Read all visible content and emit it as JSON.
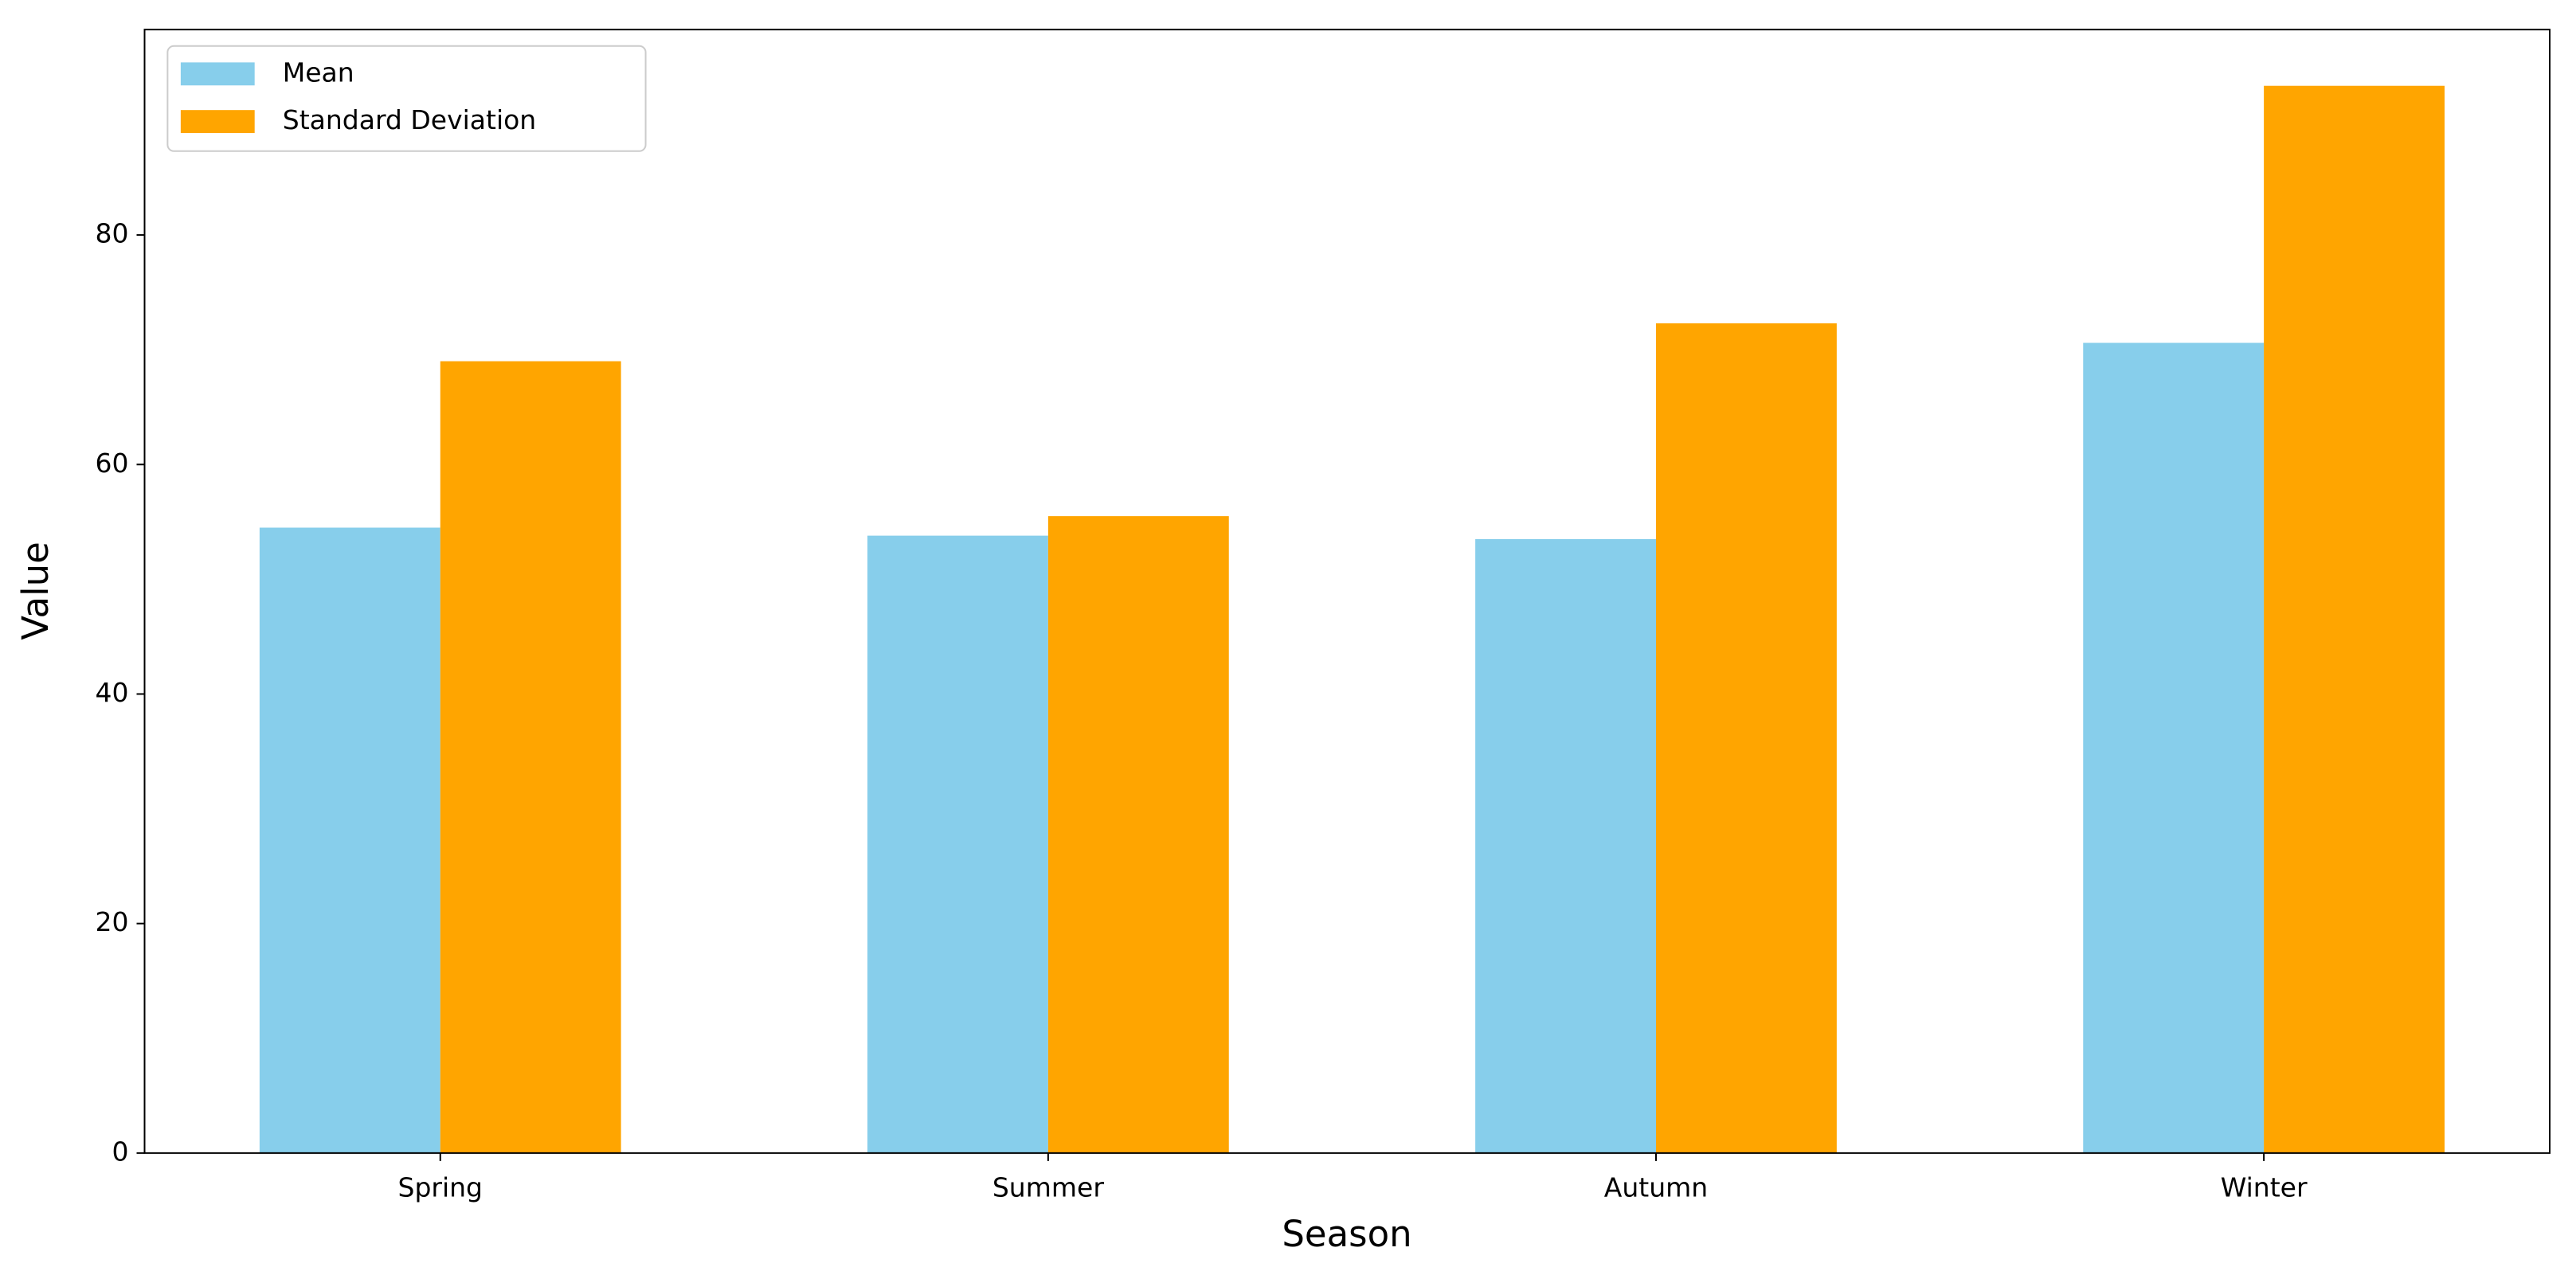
{
  "chart_data": {
    "type": "bar",
    "x_label": "Season",
    "y_label": "Value",
    "categories": [
      "Spring",
      "Summer",
      "Autumn",
      "Winter"
    ],
    "series": [
      {
        "name": "Mean",
        "color": "#87ceeb",
        "values": [
          54.5,
          53.8,
          53.5,
          70.6
        ]
      },
      {
        "name": "Standard Deviation",
        "color": "#ffa500",
        "values": [
          69.0,
          55.5,
          72.3,
          93.0
        ]
      }
    ],
    "ylim": [
      0,
      97.9
    ],
    "yticks": [
      0,
      20,
      40,
      60,
      80
    ],
    "grid": false,
    "legend": "upper left"
  }
}
